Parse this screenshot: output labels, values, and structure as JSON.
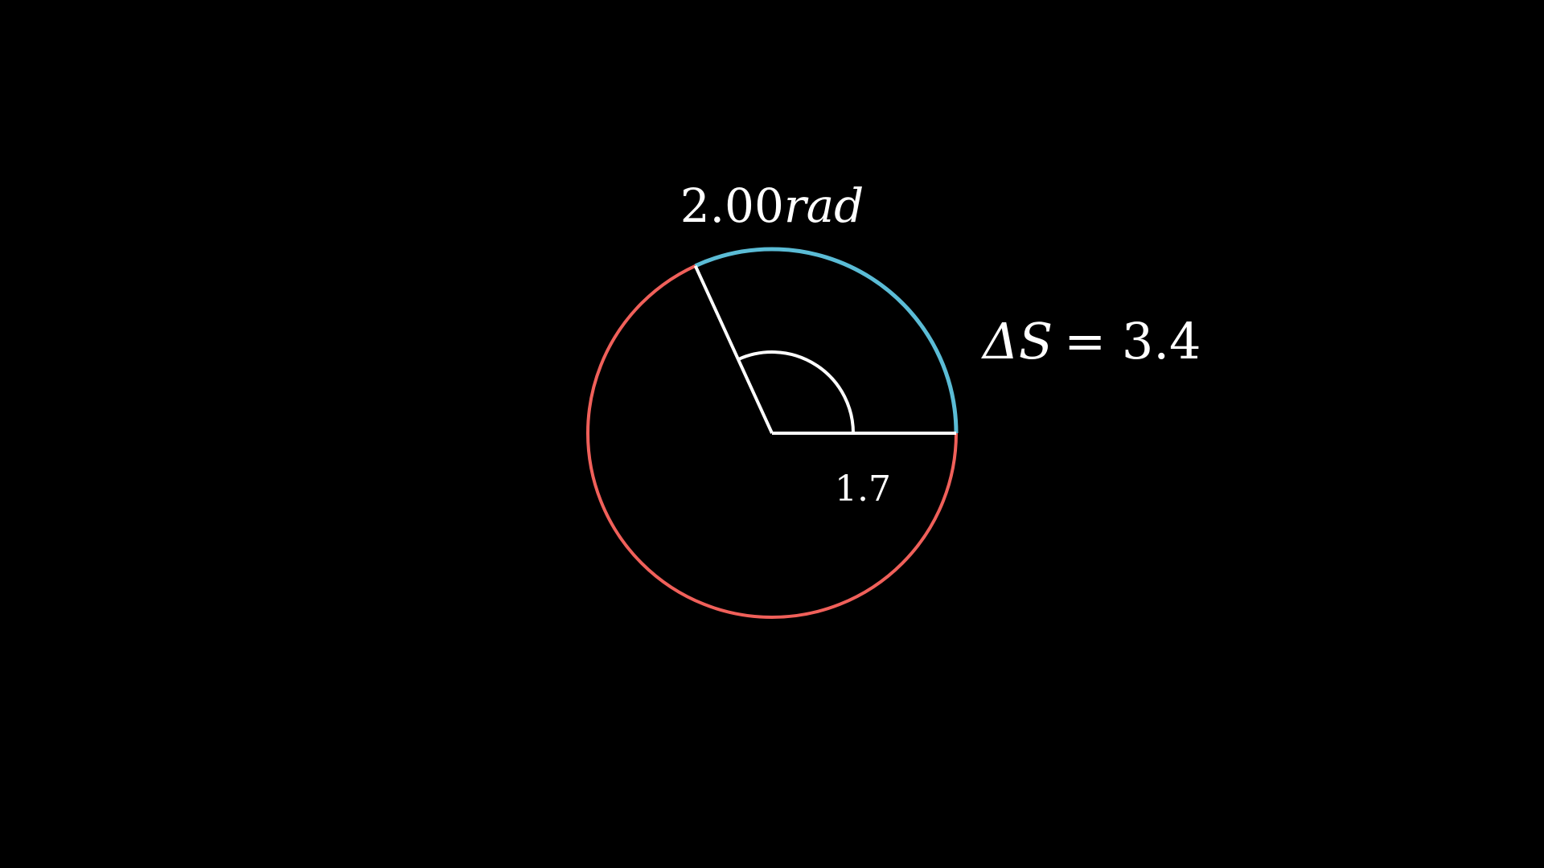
{
  "diagram": {
    "radius_value": "1.7",
    "angle_value": "2.00",
    "angle_unit": "rad",
    "arc_length_symbol": "ΔS",
    "arc_length_equals": "= 3.4",
    "angle_radians": 2.0,
    "colors": {
      "background": "#000000",
      "circle": "#f0605a",
      "arc": "#5bbcd6",
      "lines": "#ffffff"
    }
  }
}
